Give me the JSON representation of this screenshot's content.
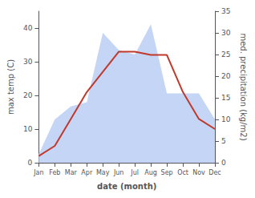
{
  "chart_data": {
    "type": "line",
    "xlabel": "date (month)",
    "ylabel": "max temp (C)",
    "y2label": "med. precipitation (kg/m2)",
    "categories": [
      "Jan",
      "Feb",
      "Mar",
      "Apr",
      "May",
      "Jun",
      "Jul",
      "Aug",
      "Sep",
      "Oct",
      "Nov",
      "Dec"
    ],
    "series": [
      {
        "type": "area",
        "color": "#c5d5f5",
        "axis": "y2",
        "values": [
          2,
          10,
          13,
          14,
          30,
          26,
          25,
          32,
          16,
          16,
          16,
          10
        ]
      },
      {
        "type": "line",
        "color": "#c0392b",
        "values": [
          2,
          5,
          13,
          21,
          27,
          33,
          33,
          32,
          32,
          21,
          13,
          10
        ]
      }
    ],
    "ylim": [
      0,
      45
    ],
    "yticks": [
      0,
      10,
      20,
      30,
      40
    ],
    "y2lim": [
      0,
      35
    ],
    "y2ticks": [
      0,
      5,
      10,
      15,
      20,
      25,
      30,
      35
    ],
    "grid": false
  }
}
